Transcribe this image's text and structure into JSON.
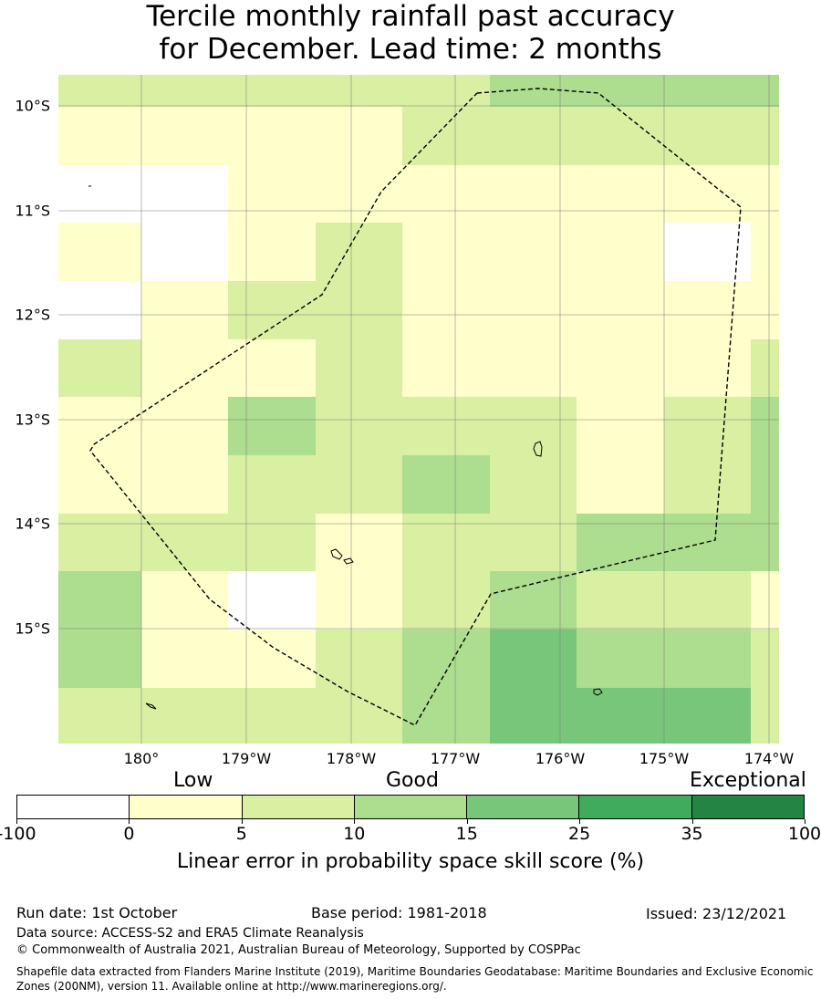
{
  "title": {
    "line1": "Tercile monthly rainfall past accuracy",
    "line2": "for December. Lead time: 2 months"
  },
  "map": {
    "lat_labels": [
      "10°S",
      "11°S",
      "12°S",
      "13°S",
      "14°S",
      "15°S"
    ],
    "lon_labels": [
      "180°",
      "179°W",
      "178°W",
      "177°W",
      "176°W",
      "175°W",
      "174°W"
    ],
    "lat_values": [
      -10,
      -11,
      -12,
      -13,
      -14,
      -15
    ],
    "lon_values": [
      180,
      -179,
      -178,
      -177,
      -176,
      -175,
      -174
    ],
    "lon_range": [
      179.2,
      -173.9
    ],
    "lat_range": [
      -9.7,
      -16.1
    ],
    "grid": true,
    "boundary_line": "dashed",
    "colors": {
      "white": "#ffffff",
      "c0": "#ffffcc",
      "c1": "#d9f0a3",
      "c2": "#addd8e",
      "c3": "#78c679"
    },
    "skill_grid": [
      [
        "c1",
        "c1",
        "c1",
        "c1",
        "c1",
        "c2",
        "c2",
        "c2",
        "c2"
      ],
      [
        "c0",
        "c0",
        "c0",
        "c0",
        "c1",
        "c1",
        "c1",
        "c1",
        "c1"
      ],
      [
        "white",
        "white",
        "c0",
        "c0",
        "c0",
        "c0",
        "c0",
        "c0",
        "c0"
      ],
      [
        "c0",
        "white",
        "c0",
        "c1",
        "c0",
        "c0",
        "c0",
        "white",
        "c0"
      ],
      [
        "white",
        "c0",
        "c1",
        "c1",
        "c0",
        "c0",
        "c0",
        "c0",
        "c0"
      ],
      [
        "c1",
        "c0",
        "c0",
        "c1",
        "c0",
        "c0",
        "c0",
        "c0",
        "c1"
      ],
      [
        "c0",
        "c0",
        "c2",
        "c1",
        "c1",
        "c1",
        "c0",
        "c1",
        "c2"
      ],
      [
        "c0",
        "c0",
        "c1",
        "c1",
        "c2",
        "c1",
        "c0",
        "c1",
        "c2"
      ],
      [
        "c1",
        "c1",
        "c1",
        "c0",
        "c1",
        "c1",
        "c2",
        "c2",
        "c2"
      ],
      [
        "c2",
        "c0",
        "white",
        "c0",
        "c1",
        "c2",
        "c1",
        "c1",
        "c0"
      ],
      [
        "c2",
        "c0",
        "c0",
        "c1",
        "c2",
        "c3",
        "c2",
        "c2",
        "c1"
      ],
      [
        "c1",
        "c1",
        "c1",
        "c1",
        "c2",
        "c3",
        "c3",
        "c3",
        "c1"
      ]
    ]
  },
  "legend": {
    "categories": {
      "low": "Low",
      "good": "Good",
      "exceptional": "Exceptional"
    },
    "ticks": [
      "-100",
      "0",
      "5",
      "10",
      "15",
      "25",
      "35",
      "100"
    ],
    "colors": [
      "#ffffff",
      "#ffffcc",
      "#d9f0a3",
      "#addd8e",
      "#78c679",
      "#41ab5d",
      "#238443"
    ],
    "label": "Linear error in probability space skill score (%)"
  },
  "footer": {
    "run_date": "Run date: 1st October",
    "base_period": "Base period: 1981-2018",
    "issued": "Issued: 23/12/2021",
    "data_source": "Data source: ACCESS-S2 and ERA5 Climate Reanalysis",
    "copyright": "© Commonwealth of Australia 2021, Australian Bureau of Meteorology, Supported by COSPPac",
    "shapefile": "Shapefile data extracted from Flanders Marine Institute (2019), Maritime Boundaries Geodatabase: Maritime Boundaries and Exclusive Economic Zones (200NM), version 11. Available online at http://www.marineregions.org/."
  }
}
